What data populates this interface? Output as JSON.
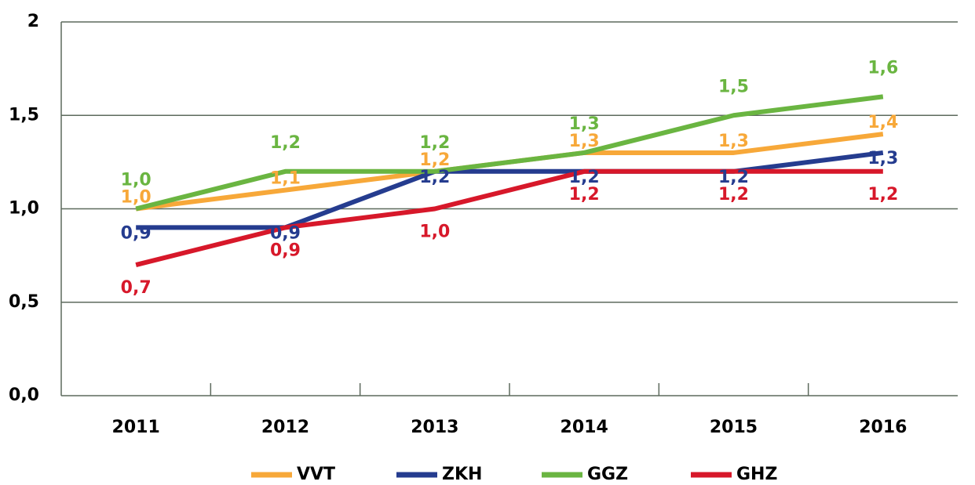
{
  "chart_data": {
    "type": "line",
    "categories": [
      "2011",
      "2012",
      "2013",
      "2014",
      "2015",
      "2016"
    ],
    "series": [
      {
        "name": "VVT",
        "color": "#f7a839",
        "values": [
          1.0,
          1.1,
          1.2,
          1.3,
          1.3,
          1.4
        ],
        "value_labels": [
          "1,0",
          "1,1",
          "1,2",
          "1,3",
          "1,3",
          "1,4"
        ]
      },
      {
        "name": "ZKH",
        "color": "#253c8f",
        "values": [
          0.9,
          0.9,
          1.2,
          1.2,
          1.2,
          1.3
        ],
        "value_labels": [
          "0,9",
          "0,9",
          "1,2",
          "1,2",
          "1,2",
          "1,3"
        ]
      },
      {
        "name": "GGZ",
        "color": "#6ab541",
        "values": [
          1.0,
          1.2,
          1.2,
          1.3,
          1.5,
          1.6
        ],
        "value_labels": [
          "1,0",
          "1,2",
          "1,2",
          "1,3",
          "1,5",
          "1,6"
        ]
      },
      {
        "name": "GHZ",
        "color": "#d7182a",
        "values": [
          0.7,
          0.9,
          1.0,
          1.2,
          1.2,
          1.2
        ],
        "value_labels": [
          "0,7",
          "0,9",
          "1,0",
          "1,2",
          "1,2",
          "1,2"
        ]
      }
    ],
    "ylim": [
      0,
      2
    ],
    "yticks": [
      {
        "value": 0,
        "label": "0,0"
      },
      {
        "value": 0.5,
        "label": "0,5"
      },
      {
        "value": 1,
        "label": "1,0"
      },
      {
        "value": 1.5,
        "label": "1,5"
      },
      2
    ],
    "grid": true,
    "legend": "bottom"
  }
}
